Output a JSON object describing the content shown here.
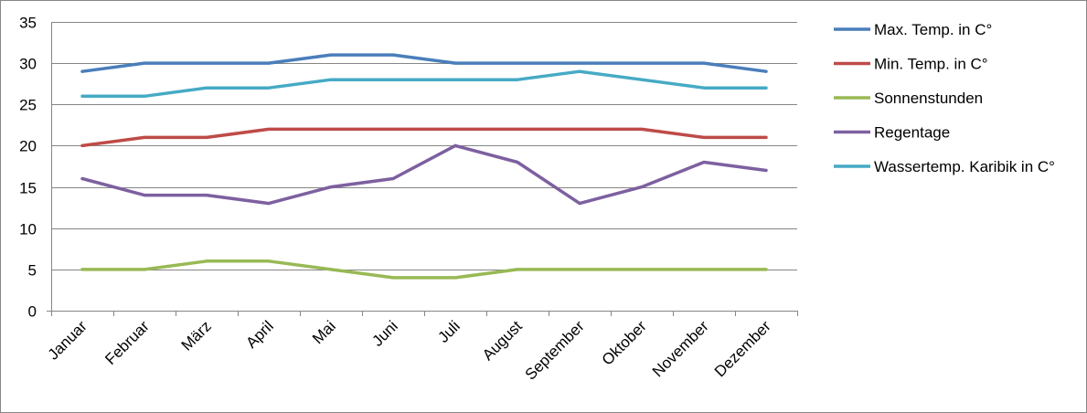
{
  "chart_data": {
    "type": "line",
    "categories": [
      "Januar",
      "Februar",
      "März",
      "April",
      "Mai",
      "Juni",
      "Juli",
      "August",
      "September",
      "Oktober",
      "November",
      "Dezember"
    ],
    "ylim": [
      0,
      35
    ],
    "yticks": [
      "0",
      "5",
      "10",
      "15",
      "20",
      "25",
      "30",
      "35"
    ],
    "grid": "horizontal",
    "legend_position": "right",
    "series": [
      {
        "name": "Max. Temp. in C°",
        "color": "#4a7ebb",
        "values": [
          29,
          30,
          30,
          30,
          31,
          31,
          30,
          30,
          30,
          30,
          30,
          29
        ]
      },
      {
        "name": "Min. Temp. in C°",
        "color": "#be4b48",
        "values": [
          20,
          21,
          21,
          22,
          22,
          22,
          22,
          22,
          22,
          22,
          21,
          21
        ]
      },
      {
        "name": "Sonnenstunden",
        "color": "#98b954",
        "values": [
          5,
          5,
          6,
          6,
          5,
          4,
          4,
          5,
          5,
          5,
          5,
          5
        ]
      },
      {
        "name": "Regentage",
        "color": "#7d60a0",
        "values": [
          16,
          14,
          14,
          13,
          15,
          16,
          20,
          18,
          13,
          15,
          18,
          17
        ]
      },
      {
        "name": "Wassertemp. Karibik in C°",
        "color": "#46aac5",
        "values": [
          26,
          26,
          27,
          27,
          28,
          28,
          28,
          28,
          29,
          28,
          27,
          27
        ]
      }
    ]
  }
}
